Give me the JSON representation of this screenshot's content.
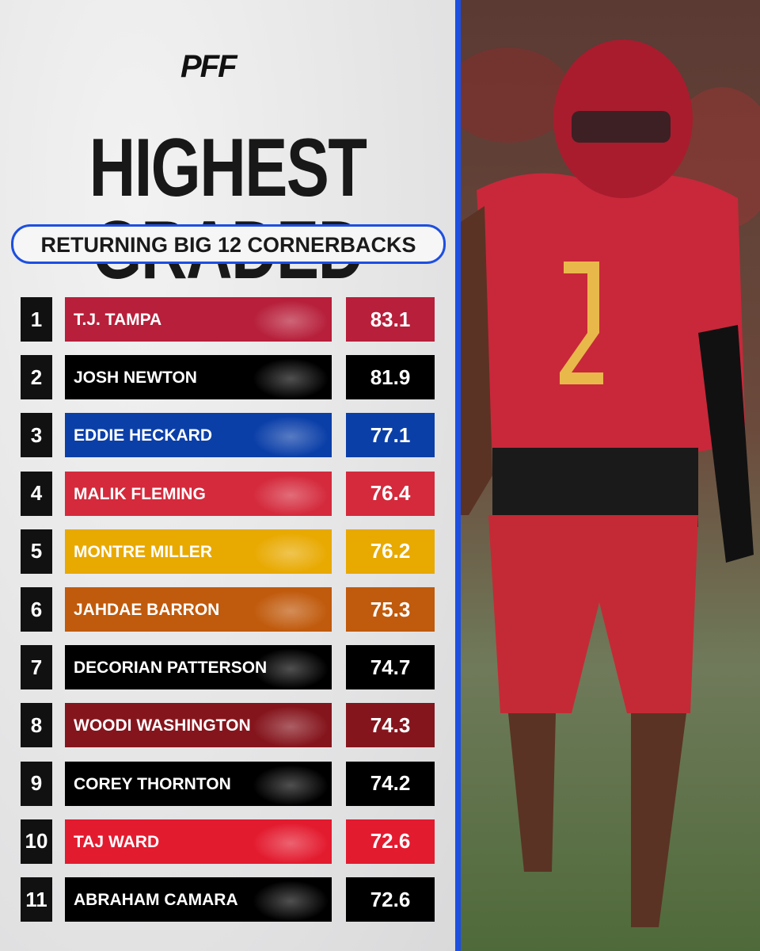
{
  "brand": "PFF",
  "header": {
    "title": "HIGHEST GRADED",
    "subtitle": "RETURNING BIG 12 CORNERBACKS"
  },
  "rows": [
    {
      "rank": "1",
      "name": "T.J. TAMPA",
      "grade": "83.1",
      "color": "#b71f3a"
    },
    {
      "rank": "2",
      "name": "JOSH NEWTON",
      "grade": "81.9",
      "color": "#000000"
    },
    {
      "rank": "3",
      "name": "EDDIE HECKARD",
      "grade": "77.1",
      "color": "#0b3fa8"
    },
    {
      "rank": "4",
      "name": "MALIK FLEMING",
      "grade": "76.4",
      "color": "#d42a3c"
    },
    {
      "rank": "5",
      "name": "MONTRE MILLER",
      "grade": "76.2",
      "color": "#e8a900"
    },
    {
      "rank": "6",
      "name": "JAHDAE BARRON",
      "grade": "75.3",
      "color": "#c05a0c"
    },
    {
      "rank": "7",
      "name": "DECORIAN PATTERSON",
      "grade": "74.7",
      "color": "#000000"
    },
    {
      "rank": "8",
      "name": "WOODI WASHINGTON",
      "grade": "74.3",
      "color": "#85151d"
    },
    {
      "rank": "9",
      "name": "COREY THORNTON",
      "grade": "74.2",
      "color": "#000000"
    },
    {
      "rank": "10",
      "name": "TAJ WARD",
      "grade": "72.6",
      "color": "#e31b2f"
    },
    {
      "rank": "11",
      "name": "ABRAHAM CAMARA",
      "grade": "72.6",
      "color": "#000000"
    }
  ]
}
